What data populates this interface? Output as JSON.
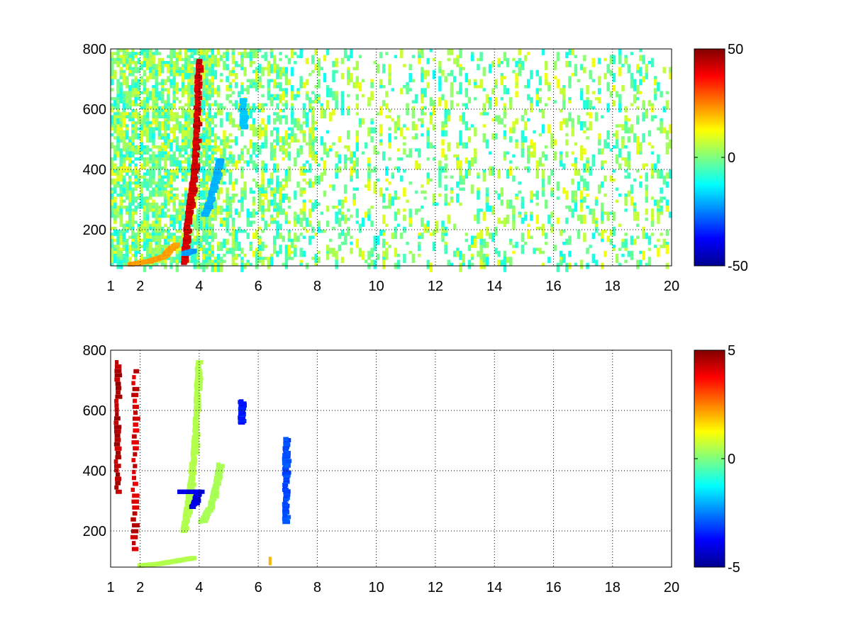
{
  "figure": {
    "background": "#ffffff",
    "colormap": "jet"
  },
  "chart_data": [
    {
      "type": "heatmap",
      "title": "",
      "xlabel": "",
      "ylabel": "",
      "xlim": [
        1,
        20
      ],
      "ylim": [
        80,
        800
      ],
      "xticks": [
        1,
        2,
        4,
        6,
        8,
        10,
        12,
        14,
        16,
        18,
        20
      ],
      "xtick_labels": [
        "1",
        "2",
        "4",
        "6",
        "8",
        "10",
        "12",
        "14",
        "16",
        "18",
        "20"
      ],
      "yticks": [
        200,
        400,
        600,
        800
      ],
      "ytick_labels": [
        "200",
        "400",
        "600",
        "800"
      ],
      "grid": true,
      "grid_style": "dotted",
      "colorbar": {
        "min": -50,
        "max": 50,
        "ticks": [
          50,
          0,
          -50
        ],
        "tick_labels": [
          "50",
          "0",
          "-50"
        ],
        "colormap": "jet"
      },
      "features": [
        {
          "description": "strong positive ridge",
          "points": [
            [
              3.5,
              90
            ],
            [
              3.6,
              200
            ],
            [
              3.7,
              280
            ],
            [
              3.8,
              350
            ],
            [
              3.9,
              450
            ],
            [
              3.95,
              600
            ],
            [
              4.0,
              760
            ]
          ],
          "value": 42
        },
        {
          "description": "negative ridge",
          "points": [
            [
              4.2,
              250
            ],
            [
              4.4,
              300
            ],
            [
              4.6,
              380
            ],
            [
              4.7,
              430
            ]
          ],
          "value": -20
        },
        {
          "description": "low-frequency positive band",
          "points": [
            [
              1.7,
              85
            ],
            [
              2.3,
              95
            ],
            [
              2.8,
              110
            ],
            [
              3.2,
              150
            ]
          ],
          "value": 22
        },
        {
          "description": "negative spot",
          "points": [
            [
              3.5,
              120
            ],
            [
              3.8,
              130
            ]
          ],
          "value": -22
        },
        {
          "description": "negative spot",
          "points": [
            [
              5.5,
              540
            ],
            [
              5.5,
              630
            ]
          ],
          "value": -18
        }
      ],
      "background_noise": {
        "x_range": [
          1,
          20
        ],
        "y_range": [
          80,
          800
        ],
        "value_range": [
          -12,
          12
        ],
        "density": "sparse"
      }
    },
    {
      "type": "heatmap",
      "title": "",
      "xlabel": "",
      "ylabel": "",
      "xlim": [
        1,
        20
      ],
      "ylim": [
        80,
        800
      ],
      "xticks": [
        1,
        2,
        4,
        6,
        8,
        10,
        12,
        14,
        16,
        18,
        20
      ],
      "xtick_labels": [
        "1",
        "2",
        "4",
        "6",
        "8",
        "10",
        "12",
        "14",
        "16",
        "18",
        "20"
      ],
      "yticks": [
        200,
        400,
        600,
        800
      ],
      "ytick_labels": [
        "200",
        "400",
        "600",
        "800"
      ],
      "grid": true,
      "grid_style": "dotted",
      "colorbar": {
        "min": -5,
        "max": 5,
        "ticks": [
          5,
          0,
          -5
        ],
        "tick_labels": [
          "5",
          "0",
          "-5"
        ],
        "colormap": "jet"
      },
      "features": [
        {
          "description": "ridge",
          "points": [
            [
              3.5,
              200
            ],
            [
              3.6,
              260
            ],
            [
              3.7,
              330
            ],
            [
              3.8,
              420
            ],
            [
              3.9,
              520
            ],
            [
              3.95,
              650
            ],
            [
              4.0,
              760
            ]
          ],
          "value": 0.5
        },
        {
          "description": "secondary ridge",
          "points": [
            [
              4.1,
              230
            ],
            [
              4.4,
              280
            ],
            [
              4.6,
              350
            ],
            [
              4.7,
              420
            ]
          ],
          "value": 0.4
        },
        {
          "description": "low band",
          "points": [
            [
              2.0,
              85
            ],
            [
              2.6,
              90
            ],
            [
              3.2,
              100
            ],
            [
              3.8,
              110
            ]
          ],
          "value": 0.5
        },
        {
          "description": "negative spots",
          "points": [
            [
              3.8,
              280
            ],
            [
              4.0,
              330
            ],
            [
              3.35,
              330
            ]
          ],
          "value": -4
        },
        {
          "description": "streak",
          "points": [
            [
              1.25,
              330
            ],
            [
              1.25,
              760
            ]
          ],
          "value": 4.5
        },
        {
          "description": "streak",
          "points": [
            [
              1.8,
              140
            ],
            [
              1.85,
              730
            ]
          ],
          "value": 4.2
        },
        {
          "description": "streak",
          "points": [
            [
              5.45,
              560
            ],
            [
              5.45,
              630
            ]
          ],
          "value": -3.5
        },
        {
          "description": "spots",
          "points": [
            [
              6.95,
              230
            ],
            [
              6.95,
              390
            ],
            [
              6.95,
              505
            ]
          ],
          "value": -3
        },
        {
          "description": "spot",
          "points": [
            [
              6.4,
              100
            ]
          ],
          "value": 2
        }
      ]
    }
  ]
}
